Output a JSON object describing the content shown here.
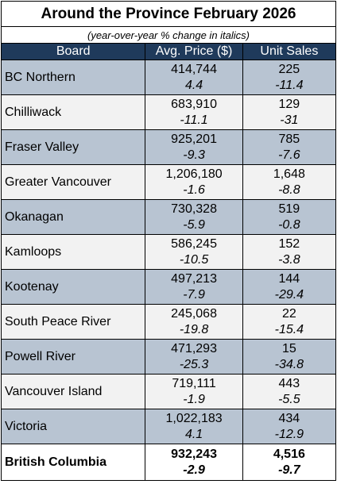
{
  "title": "Around the Province February 2026",
  "subtitle": "(year-over-year % change in italics)",
  "table": {
    "headers": [
      "Board",
      "Avg. Price ($)",
      "Unit Sales"
    ],
    "rows": [
      [
        "BC Northern",
        "414,744",
        "4.4",
        "225",
        "-11.4"
      ],
      [
        "Chilliwack",
        "683,910",
        "-11.1",
        "129",
        "-31"
      ],
      [
        "Fraser Valley",
        "925,201",
        "-9.3",
        "785",
        "-7.6"
      ],
      [
        "Greater Vancouver",
        "1,206,180",
        "-1.6",
        "1,648",
        "-8.8"
      ],
      [
        "Okanagan",
        "730,328",
        "-5.9",
        "519",
        "-0.8"
      ],
      [
        "Kamloops",
        "586,245",
        "-10.5",
        "152",
        "-3.8"
      ],
      [
        "Kootenay",
        "497,213",
        "-7.9",
        "144",
        "-29.4"
      ],
      [
        "South Peace River",
        "245,068",
        "-19.8",
        "22",
        "-15.4"
      ],
      [
        "Powell River",
        "471,293",
        "-25.3",
        "15",
        "-34.8"
      ],
      [
        "Vancouver Island",
        "719,111",
        "-1.9",
        "443",
        "-5.5"
      ],
      [
        "Victoria",
        "1,022,183",
        "4.1",
        "434",
        "-12.9"
      ]
    ],
    "total": [
      "British Columbia",
      "932,243",
      "-2.9",
      "4,516",
      "-9.7"
    ]
  }
}
